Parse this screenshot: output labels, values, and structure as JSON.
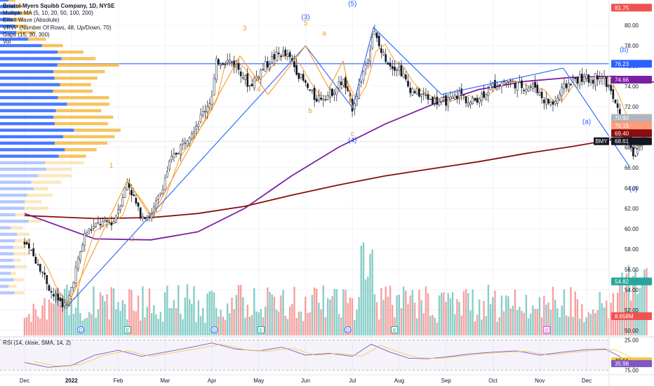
{
  "legend": {
    "title": "Bristol-Myers Squibb Company, 1D, NYSE",
    "lines": [
      "Multiple MA (5, 10, 20, 50, 100, 200)",
      "Elliott Wave (Absolute)",
      "VRVP (Number Of Rows, 48, Up/Down, 70)",
      "Gaps (15, 30, 300)",
      "Vol"
    ]
  },
  "rsi_legend": "RSI (14, close, SMA, 14, 2)",
  "colors": {
    "up": "#26a69a",
    "down": "#ef5350",
    "ma_orange": "#f7931a",
    "ma_purple": "#7b1fa2",
    "ma_darkred": "#880e0e",
    "wave_blue": "#2962ff",
    "wave_orange": "#f59a23",
    "resistance": "#2962ff",
    "target_red": "#ffcdd2",
    "target_green": "#c8e6df",
    "rsi_line": "#7e57c2"
  },
  "chart_data": [
    {
      "type": "line",
      "title": "Bristol-Myers Squibb Company, 1D, NYSE",
      "symbol": "BMY",
      "x": [
        "Dec",
        "2022",
        "Feb",
        "Mar",
        "Apr",
        "May",
        "Jun",
        "Jul",
        "Aug",
        "Sep",
        "Oct",
        "Nov",
        "Dec"
      ],
      "ylim": [
        49.5,
        82.5
      ],
      "yticks": [
        50,
        52,
        54,
        56,
        58,
        60,
        62,
        64,
        66,
        68,
        70,
        72,
        74,
        76,
        78,
        80
      ],
      "series": [
        {
          "name": "Close",
          "points": [
            [
              0,
              58.5
            ],
            [
              0.3,
              56.6
            ],
            [
              0.6,
              53.5
            ],
            [
              0.9,
              52.3
            ],
            [
              1.05,
              55.2
            ],
            [
              1.3,
              59.6
            ],
            [
              1.6,
              60.5
            ],
            [
              1.9,
              60.7
            ],
            [
              2.2,
              64.7
            ],
            [
              2.45,
              61.5
            ],
            [
              2.7,
              61.2
            ],
            [
              2.9,
              63.5
            ],
            [
              3.1,
              66.5
            ],
            [
              3.4,
              68.6
            ],
            [
              3.7,
              70.5
            ],
            [
              4.0,
              73.0
            ],
            [
              4.1,
              76.5
            ],
            [
              4.4,
              76.5
            ],
            [
              4.6,
              75.6
            ],
            [
              4.8,
              74.0
            ],
            [
              5.0,
              75.3
            ],
            [
              5.3,
              76.8
            ],
            [
              5.5,
              77.3
            ],
            [
              5.7,
              76.5
            ],
            [
              5.9,
              74.8
            ],
            [
              6.2,
              72.8
            ],
            [
              6.5,
              73.2
            ],
            [
              6.8,
              74.6
            ],
            [
              7.0,
              71.9
            ],
            [
              7.3,
              76.4
            ],
            [
              7.45,
              79.5
            ],
            [
              7.6,
              77.5
            ],
            [
              7.8,
              76.2
            ],
            [
              8.0,
              75.8
            ],
            [
              8.2,
              73.9
            ],
            [
              8.5,
              73.1
            ],
            [
              8.8,
              72.5
            ],
            [
              9.1,
              72.6
            ],
            [
              9.3,
              73.4
            ],
            [
              9.5,
              72.3
            ],
            [
              9.8,
              73.3
            ],
            [
              10.0,
              74.1
            ],
            [
              10.3,
              74.6
            ],
            [
              10.5,
              74.2
            ],
            [
              10.7,
              73.9
            ],
            [
              10.9,
              74.0
            ],
            [
              11.1,
              72.6
            ],
            [
              11.3,
              72.3
            ],
            [
              11.5,
              73.8
            ],
            [
              11.7,
              74.6
            ],
            [
              11.9,
              74.8
            ],
            [
              12.1,
              74.6
            ],
            [
              12.3,
              75.3
            ],
            [
              12.5,
              73.6
            ],
            [
              12.7,
              71.1
            ],
            [
              12.9,
              69.3
            ],
            [
              13.0,
              67.0
            ],
            [
              13.1,
              67.9
            ],
            [
              13.3,
              69.4
            ]
          ]
        },
        {
          "name": "MA 100",
          "points": [
            [
              0,
              61.5
            ],
            [
              1.5,
              59.0
            ],
            [
              2.7,
              58.9
            ],
            [
              3.7,
              59.7
            ],
            [
              4.7,
              62.0
            ],
            [
              5.7,
              65.2
            ],
            [
              6.7,
              68.0
            ],
            [
              7.7,
              70.3
            ],
            [
              8.7,
              72.2
            ],
            [
              9.7,
              73.7
            ],
            [
              10.7,
              74.5
            ],
            [
              11.7,
              74.9
            ],
            [
              12.6,
              75.0
            ],
            [
              13.2,
              74.6
            ],
            [
              13.6,
              74.3
            ]
          ]
        },
        {
          "name": "MA 200",
          "points": [
            [
              0,
              61.3
            ],
            [
              1.5,
              61.0
            ],
            [
              2.7,
              61.1
            ],
            [
              3.7,
              61.5
            ],
            [
              4.7,
              62.2
            ],
            [
              5.7,
              63.3
            ],
            [
              6.7,
              64.3
            ],
            [
              7.7,
              65.2
            ],
            [
              8.7,
              65.9
            ],
            [
              9.7,
              66.6
            ],
            [
              10.7,
              67.4
            ],
            [
              11.7,
              68.1
            ],
            [
              12.6,
              68.8
            ],
            [
              13.2,
              69.3
            ]
          ]
        }
      ],
      "wave_labels_blue": [
        "(3)",
        "(5)",
        "(4)",
        "(a)",
        "(b)",
        "(c)"
      ],
      "wave_labels_orange": [
        "1",
        "2",
        "3",
        "4",
        "5",
        "a",
        "b",
        "c"
      ],
      "price_tags": [
        {
          "label": "81.75",
          "value": 81.75,
          "color": "#ef5350"
        },
        {
          "label": "76.23",
          "value": 76.23,
          "color": "#2962ff"
        },
        {
          "label": "74.66",
          "value": 74.66,
          "color": "#7b1fa2"
        },
        {
          "label": "70.90",
          "value": 70.9,
          "color": "#b0b4bc"
        },
        {
          "label": "70.16",
          "value": 70.16,
          "color": "#ef5350"
        },
        {
          "label": "70.15",
          "value": 70.15,
          "color": "#ff9c7a"
        },
        {
          "label": "69.40",
          "value": 69.4,
          "color": "#880e0e"
        },
        {
          "label": "68.61",
          "value": 68.61,
          "color": "#131722"
        },
        {
          "label": "54.82",
          "value": 54.82,
          "color": "#26a69a"
        },
        {
          "label": "8.658M",
          "value": 51.4,
          "color": "#ef5350"
        }
      ],
      "symbol_tag": "BMY",
      "resistance": 76.23,
      "target_box": {
        "top": 81.75,
        "entry": 70.16,
        "bottom": 54.82
      },
      "gap_box": {
        "top": 70.9,
        "bottom": 70.15
      },
      "event_markers": [
        "D",
        "E",
        "D",
        "E",
        "D",
        "E",
        "E"
      ]
    },
    {
      "type": "line",
      "title": "RSI (14, close, SMA, 14, 2)",
      "ylim": [
        20,
        80
      ],
      "yticks": [
        25,
        75
      ],
      "tick_labels": [
        "75.00",
        "25.00"
      ],
      "value_tags": [
        {
          "label": "40.51",
          "value": 40.51
        },
        {
          "label": "35.98",
          "value": 35.98
        }
      ],
      "series": [
        {
          "name": "RSI",
          "points": [
            [
              0,
              38
            ],
            [
              0.5,
              30
            ],
            [
              1,
              33
            ],
            [
              1.5,
              50
            ],
            [
              2,
              58
            ],
            [
              2.5,
              48
            ],
            [
              3,
              55
            ],
            [
              3.5,
              62
            ],
            [
              4,
              70
            ],
            [
              4.5,
              60
            ],
            [
              5,
              57
            ],
            [
              5.5,
              63
            ],
            [
              6,
              50
            ],
            [
              6.5,
              53
            ],
            [
              7,
              48
            ],
            [
              7.4,
              68
            ],
            [
              7.8,
              55
            ],
            [
              8.2,
              45
            ],
            [
              8.6,
              44
            ],
            [
              9,
              47
            ],
            [
              9.5,
              52
            ],
            [
              10,
              55
            ],
            [
              10.5,
              57
            ],
            [
              11,
              50
            ],
            [
              11.5,
              55
            ],
            [
              12,
              59
            ],
            [
              12.4,
              60
            ],
            [
              12.7,
              48
            ],
            [
              13,
              30
            ],
            [
              13.3,
              36
            ]
          ]
        }
      ]
    }
  ]
}
